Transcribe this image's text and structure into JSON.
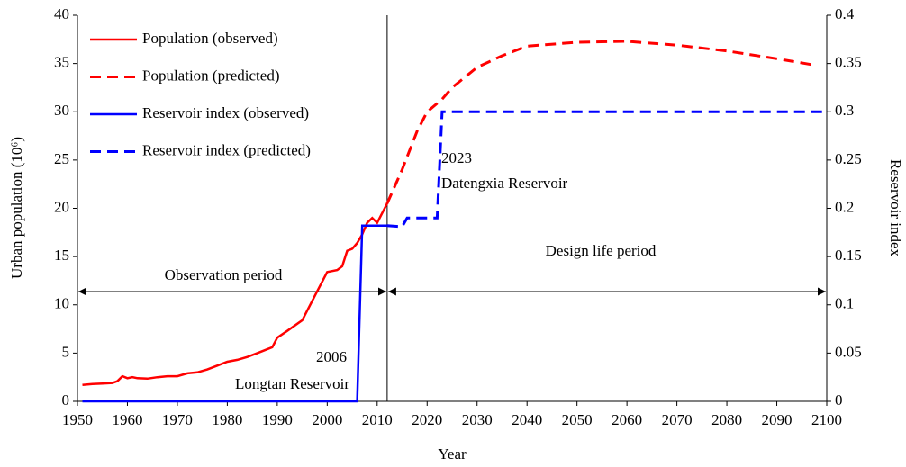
{
  "chart_data": {
    "type": "line",
    "xlabel": "Year",
    "ylabel": "Urban population (10⁶)",
    "y2label": "Reservoir index",
    "xlim": [
      1950,
      2100
    ],
    "xticks": [
      1950,
      1960,
      1970,
      1980,
      1990,
      2000,
      2010,
      2020,
      2030,
      2040,
      2050,
      2060,
      2070,
      2080,
      2090,
      2100
    ],
    "ylim": [
      0,
      40
    ],
    "yticks": [
      0,
      5,
      10,
      15,
      20,
      25,
      30,
      35,
      40
    ],
    "y2lim": [
      0,
      0.4
    ],
    "y2ticks": [
      0,
      0.05,
      0.1,
      0.15,
      0.2,
      0.25,
      0.3,
      0.35,
      0.4
    ],
    "grid": false,
    "legend": "upper left",
    "divider_x": 2012,
    "series": [
      {
        "name": "Population (observed)",
        "color": "#ff0000",
        "linestyle": "solid",
        "axis": "y",
        "x": [
          1951,
          1953,
          1955,
          1957,
          1958,
          1959,
          1960,
          1961,
          1962,
          1964,
          1966,
          1968,
          1970,
          1972,
          1974,
          1976,
          1978,
          1980,
          1982,
          1984,
          1986,
          1988,
          1989,
          1990,
          1992,
          1995,
          1998,
          2000,
          2002,
          2003,
          2004,
          2005,
          2006,
          2007,
          2008,
          2009,
          2010,
          2011,
          2012
        ],
        "y": [
          1.7,
          1.8,
          1.85,
          1.9,
          2.1,
          2.6,
          2.4,
          2.5,
          2.4,
          2.35,
          2.5,
          2.6,
          2.6,
          2.9,
          3.0,
          3.3,
          3.7,
          4.1,
          4.3,
          4.6,
          5.0,
          5.4,
          5.6,
          6.6,
          7.3,
          8.4,
          11.4,
          13.4,
          13.6,
          14.0,
          15.6,
          15.8,
          16.4,
          17.3,
          18.5,
          19.0,
          18.5,
          19.5,
          20.5
        ]
      },
      {
        "name": "Population (predicted)",
        "color": "#ff0000",
        "linestyle": "dashed",
        "axis": "y",
        "x": [
          2012,
          2015,
          2018,
          2020,
          2023,
          2025,
          2030,
          2035,
          2040,
          2050,
          2060,
          2070,
          2080,
          2090,
          2098
        ],
        "y": [
          20.5,
          24,
          28,
          30,
          31.3,
          32.5,
          34.6,
          35.8,
          36.8,
          37.2,
          37.3,
          36.9,
          36.3,
          35.5,
          34.8
        ]
      },
      {
        "name": "Reservoir index (observed)",
        "color": "#0000ff",
        "linestyle": "solid",
        "axis": "y2",
        "x": [
          1951,
          2006,
          2007,
          2012
        ],
        "y": [
          0,
          0,
          0.182,
          0.182
        ]
      },
      {
        "name": "Reservoir index (predicted)",
        "color": "#0000ff",
        "linestyle": "dashed",
        "axis": "y2",
        "x": [
          2012,
          2015,
          2016,
          2022,
          2023,
          2100
        ],
        "y": [
          0.182,
          0.181,
          0.19,
          0.19,
          0.3,
          0.3
        ]
      }
    ],
    "annotations": [
      "2006",
      "Longtan Reservoir",
      "2023",
      "Datengxia Reservoir",
      "Observation period",
      "Design life period"
    ]
  }
}
